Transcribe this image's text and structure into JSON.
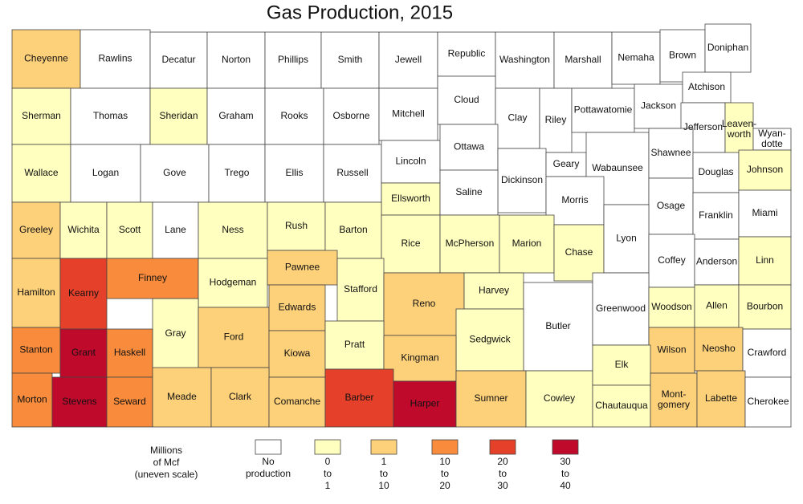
{
  "title": "Gas Production, 2015",
  "legend": {
    "title_lines": [
      "Millions",
      "of Mcf",
      "(uneven scale)"
    ],
    "classes": [
      {
        "lines": [
          "No",
          "production"
        ],
        "color": "#ffffff"
      },
      {
        "lines": [
          "0",
          "to",
          "1"
        ],
        "color": "#ffffbf"
      },
      {
        "lines": [
          "1",
          "to",
          "10"
        ],
        "color": "#fdd07a"
      },
      {
        "lines": [
          "10",
          "to",
          "20"
        ],
        "color": "#f98c3c"
      },
      {
        "lines": [
          "20",
          "to",
          "30"
        ],
        "color": "#e5402a"
      },
      {
        "lines": [
          "30",
          "to",
          "40"
        ],
        "color": "#c00a2c"
      }
    ]
  },
  "counties": [
    {
      "name": "Cheyenne",
      "class": 2
    },
    {
      "name": "Rawlins",
      "class": 0
    },
    {
      "name": "Decatur",
      "class": 0
    },
    {
      "name": "Norton",
      "class": 0
    },
    {
      "name": "Phillips",
      "class": 0
    },
    {
      "name": "Smith",
      "class": 0
    },
    {
      "name": "Jewell",
      "class": 0
    },
    {
      "name": "Republic",
      "class": 0
    },
    {
      "name": "Washington",
      "class": 0
    },
    {
      "name": "Marshall",
      "class": 0
    },
    {
      "name": "Nemaha",
      "class": 0
    },
    {
      "name": "Brown",
      "class": 0
    },
    {
      "name": "Doniphan",
      "class": 0
    },
    {
      "name": "Sherman",
      "class": 1
    },
    {
      "name": "Thomas",
      "class": 0
    },
    {
      "name": "Sheridan",
      "class": 1
    },
    {
      "name": "Graham",
      "class": 0
    },
    {
      "name": "Rooks",
      "class": 0
    },
    {
      "name": "Osborne",
      "class": 0
    },
    {
      "name": "Mitchell",
      "class": 0
    },
    {
      "name": "Cloud",
      "class": 0
    },
    {
      "name": "Clay",
      "class": 0
    },
    {
      "name": "Riley",
      "class": 0
    },
    {
      "name": "Pottawatomie",
      "class": 0
    },
    {
      "name": "Jackson",
      "class": 0
    },
    {
      "name": "Atchison",
      "class": 0
    },
    {
      "name": "Jefferson",
      "class": 0
    },
    {
      "name_lines": [
        "Leaven-",
        "worth"
      ],
      "class": 1
    },
    {
      "name_lines": [
        "Wyan-",
        "dotte"
      ],
      "class": 0
    },
    {
      "name": "Wallace",
      "class": 1
    },
    {
      "name": "Logan",
      "class": 0
    },
    {
      "name": "Gove",
      "class": 0
    },
    {
      "name": "Trego",
      "class": 0
    },
    {
      "name": "Ellis",
      "class": 0
    },
    {
      "name": "Russell",
      "class": 0
    },
    {
      "name": "Lincoln",
      "class": 0
    },
    {
      "name": "Ottawa",
      "class": 0
    },
    {
      "name": "Dickinson",
      "class": 0
    },
    {
      "name": "Geary",
      "class": 0
    },
    {
      "name": "Wabaunsee",
      "class": 0
    },
    {
      "name": "Shawnee",
      "class": 0
    },
    {
      "name": "Douglas",
      "class": 0
    },
    {
      "name": "Johnson",
      "class": 1
    },
    {
      "name": "Ellsworth",
      "class": 1
    },
    {
      "name": "Saline",
      "class": 0
    },
    {
      "name": "Morris",
      "class": 0
    },
    {
      "name": "Osage",
      "class": 0
    },
    {
      "name": "Franklin",
      "class": 0
    },
    {
      "name": "Miami",
      "class": 0
    },
    {
      "name": "Greeley",
      "class": 2
    },
    {
      "name": "Wichita",
      "class": 1
    },
    {
      "name": "Scott",
      "class": 1
    },
    {
      "name": "Lane",
      "class": 0
    },
    {
      "name": "Ness",
      "class": 1
    },
    {
      "name": "Rush",
      "class": 1
    },
    {
      "name": "Barton",
      "class": 1
    },
    {
      "name": "Rice",
      "class": 1
    },
    {
      "name": "McPherson",
      "class": 1
    },
    {
      "name": "Marion",
      "class": 1
    },
    {
      "name": "Chase",
      "class": 1
    },
    {
      "name": "Lyon",
      "class": 0
    },
    {
      "name": "Coffey",
      "class": 0
    },
    {
      "name": "Anderson",
      "class": 0
    },
    {
      "name": "Linn",
      "class": 1
    },
    {
      "name": "Hamilton",
      "class": 2
    },
    {
      "name": "Kearny",
      "class": 4
    },
    {
      "name": "Finney",
      "class": 3
    },
    {
      "name": "Hodgeman",
      "class": 1
    },
    {
      "name": "Pawnee",
      "class": 2
    },
    {
      "name": "Stafford",
      "class": 1
    },
    {
      "name": "Reno",
      "class": 2
    },
    {
      "name": "Harvey",
      "class": 1
    },
    {
      "name": "Butler",
      "class": 0
    },
    {
      "name": "Greenwood",
      "class": 0
    },
    {
      "name": "Woodson",
      "class": 1
    },
    {
      "name": "Allen",
      "class": 1
    },
    {
      "name": "Bourbon",
      "class": 1
    },
    {
      "name": "Gray",
      "class": 1
    },
    {
      "name": "Ford",
      "class": 2
    },
    {
      "name": "Edwards",
      "class": 2
    },
    {
      "name": "Sedgwick",
      "class": 1
    },
    {
      "name": "Wilson",
      "class": 2
    },
    {
      "name": "Neosho",
      "class": 2
    },
    {
      "name": "Crawford",
      "class": 0
    },
    {
      "name": "Stanton",
      "class": 3
    },
    {
      "name": "Grant",
      "class": 5
    },
    {
      "name": "Haskell",
      "class": 3
    },
    {
      "name": "Kiowa",
      "class": 2
    },
    {
      "name": "Pratt",
      "class": 1
    },
    {
      "name": "Kingman",
      "class": 2
    },
    {
      "name": "Morton",
      "class": 3
    },
    {
      "name": "Stevens",
      "class": 5
    },
    {
      "name": "Seward",
      "class": 3
    },
    {
      "name": "Meade",
      "class": 2
    },
    {
      "name": "Clark",
      "class": 2
    },
    {
      "name": "Comanche",
      "class": 2
    },
    {
      "name": "Barber",
      "class": 4
    },
    {
      "name": "Harper",
      "class": 5
    },
    {
      "name": "Sumner",
      "class": 2
    },
    {
      "name": "Cowley",
      "class": 1
    },
    {
      "name": "Elk",
      "class": 1
    },
    {
      "name": "Chautauqua",
      "class": 1
    },
    {
      "name_lines": [
        "Mont-",
        "gomery"
      ],
      "class": 2
    },
    {
      "name": "Labette",
      "class": 2
    },
    {
      "name": "Cherokee",
      "class": 0
    }
  ]
}
